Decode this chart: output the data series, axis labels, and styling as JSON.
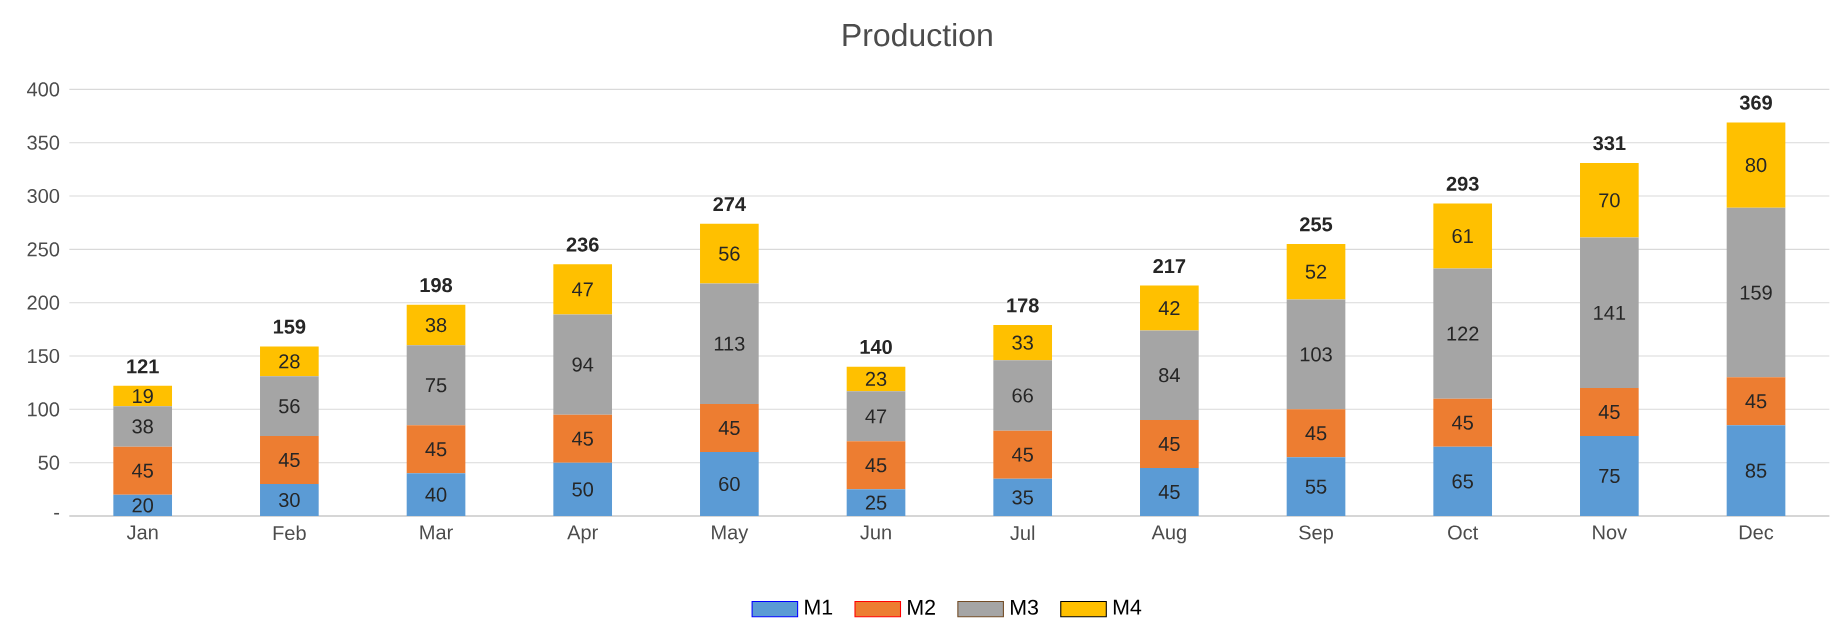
{
  "chart_data": {
    "type": "bar",
    "title": "Production",
    "stacked": true,
    "categories": [
      "Jan",
      "Feb",
      "Mar",
      "Apr",
      "May",
      "Jun",
      "Jul",
      "Aug",
      "Sep",
      "Oct",
      "Nov",
      "Dec"
    ],
    "series": [
      {
        "name": "M1",
        "color": "#5b9bd5",
        "values": [
          20,
          30,
          40,
          50,
          60,
          25,
          35,
          45,
          55,
          65,
          75,
          85
        ]
      },
      {
        "name": "M2",
        "color": "#ed7d31",
        "values": [
          45,
          45,
          45,
          45,
          45,
          45,
          45,
          45,
          45,
          45,
          45,
          45
        ]
      },
      {
        "name": "M3",
        "color": "#a5a5a5",
        "values": [
          38,
          56,
          75,
          94,
          113,
          47,
          66,
          84,
          103,
          122,
          141,
          159
        ]
      },
      {
        "name": "M4",
        "color": "#ffc000",
        "values": [
          19,
          28,
          38,
          47,
          56,
          23,
          33,
          42,
          52,
          61,
          70,
          80
        ]
      }
    ],
    "totals": [
      "121",
      "159",
      "198",
      "236",
      "274",
      "140",
      "178",
      "217",
      "255",
      "293",
      "331",
      "369"
    ],
    "ylim": [
      0,
      400
    ],
    "yticks": [
      {
        "value": 0,
        "label": "-"
      },
      50,
      100,
      150,
      200,
      250,
      300,
      350,
      400
    ],
    "grid": "y",
    "legend": "bottom",
    "data_labels": true
  }
}
